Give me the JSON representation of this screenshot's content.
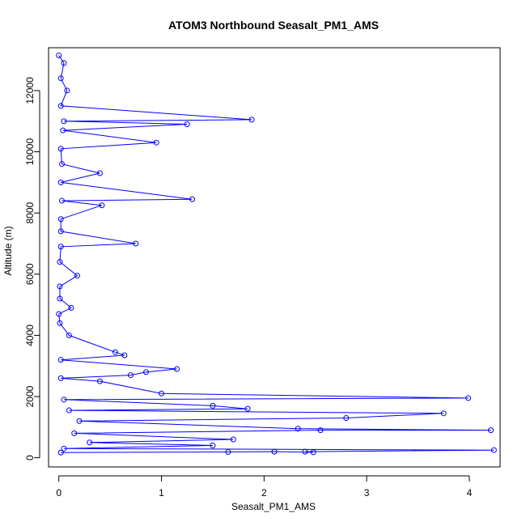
{
  "chart_data": {
    "type": "line",
    "title": "ATOM3 Northbound Seasalt_PM1_AMS",
    "xlabel": "Seasalt_PM1_AMS",
    "ylabel": "Altitude (m)",
    "xlim": [
      -0.1,
      4.3
    ],
    "ylim": [
      -300,
      13400
    ],
    "x_ticks": [
      0,
      1,
      2,
      3,
      4
    ],
    "y_ticks": [
      0,
      2000,
      4000,
      6000,
      8000,
      10000,
      12000
    ],
    "grid": false,
    "legend": "none",
    "colors": {
      "series": "#0000ff",
      "axis": "#000000"
    },
    "series": [
      {
        "marker": "open-circle",
        "points": [
          {
            "x": 0.0,
            "y": 13150
          },
          {
            "x": 0.05,
            "y": 12900
          },
          {
            "x": 0.02,
            "y": 12400
          },
          {
            "x": 0.08,
            "y": 12000
          },
          {
            "x": 0.02,
            "y": 11500
          },
          {
            "x": 1.88,
            "y": 11050
          },
          {
            "x": 0.05,
            "y": 11000
          },
          {
            "x": 1.25,
            "y": 10900
          },
          {
            "x": 0.04,
            "y": 10700
          },
          {
            "x": 0.95,
            "y": 10300
          },
          {
            "x": 0.02,
            "y": 10100
          },
          {
            "x": 0.03,
            "y": 9600
          },
          {
            "x": 0.4,
            "y": 9300
          },
          {
            "x": 0.02,
            "y": 9000
          },
          {
            "x": 1.3,
            "y": 8450
          },
          {
            "x": 0.03,
            "y": 8400
          },
          {
            "x": 0.42,
            "y": 8250
          },
          {
            "x": 0.02,
            "y": 7800
          },
          {
            "x": 0.02,
            "y": 7400
          },
          {
            "x": 0.75,
            "y": 7000
          },
          {
            "x": 0.02,
            "y": 6900
          },
          {
            "x": 0.01,
            "y": 6400
          },
          {
            "x": 0.18,
            "y": 5950
          },
          {
            "x": 0.01,
            "y": 5600
          },
          {
            "x": 0.01,
            "y": 5200
          },
          {
            "x": 0.12,
            "y": 4900
          },
          {
            "x": 0.0,
            "y": 4700
          },
          {
            "x": 0.01,
            "y": 4400
          },
          {
            "x": 0.1,
            "y": 4000
          },
          {
            "x": 0.55,
            "y": 3450
          },
          {
            "x": 0.64,
            "y": 3350
          },
          {
            "x": 0.02,
            "y": 3200
          },
          {
            "x": 1.15,
            "y": 2900
          },
          {
            "x": 0.85,
            "y": 2800
          },
          {
            "x": 0.7,
            "y": 2700
          },
          {
            "x": 0.02,
            "y": 2600
          },
          {
            "x": 0.4,
            "y": 2500
          },
          {
            "x": 1.0,
            "y": 2100
          },
          {
            "x": 3.99,
            "y": 1950
          },
          {
            "x": 0.05,
            "y": 1900
          },
          {
            "x": 1.5,
            "y": 1700
          },
          {
            "x": 1.84,
            "y": 1600
          },
          {
            "x": 0.1,
            "y": 1550
          },
          {
            "x": 3.75,
            "y": 1450
          },
          {
            "x": 2.8,
            "y": 1300
          },
          {
            "x": 0.2,
            "y": 1200
          },
          {
            "x": 2.33,
            "y": 950
          },
          {
            "x": 4.21,
            "y": 900
          },
          {
            "x": 2.55,
            "y": 900
          },
          {
            "x": 0.15,
            "y": 800
          },
          {
            "x": 1.7,
            "y": 600
          },
          {
            "x": 0.3,
            "y": 500
          },
          {
            "x": 1.5,
            "y": 400
          },
          {
            "x": 0.05,
            "y": 300
          },
          {
            "x": 4.24,
            "y": 250
          },
          {
            "x": 2.4,
            "y": 200
          },
          {
            "x": 2.48,
            "y": 180
          },
          {
            "x": 2.1,
            "y": 200
          },
          {
            "x": 1.65,
            "y": 190
          },
          {
            "x": 0.02,
            "y": 170
          }
        ]
      }
    ]
  }
}
